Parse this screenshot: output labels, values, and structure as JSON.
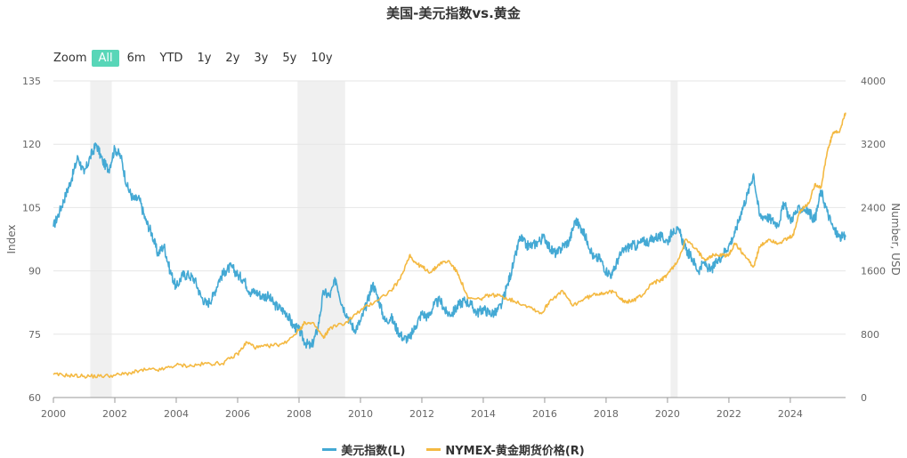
{
  "chart_data": {
    "type": "line",
    "title": "美国-美元指数vs.黄金",
    "y_left": {
      "label": "Index",
      "ticks": [
        60,
        75,
        90,
        105,
        120,
        135
      ],
      "range": [
        60,
        135
      ]
    },
    "y_right": {
      "label": "Number, USD",
      "ticks": [
        0,
        800,
        1600,
        2400,
        3200,
        4000
      ],
      "range": [
        0,
        4000
      ]
    },
    "x_range": [
      2000,
      2025.8
    ],
    "x_ticks": [
      "2000",
      "2002",
      "2004",
      "2006",
      "2008",
      "2010",
      "2012",
      "2014",
      "2016",
      "2018",
      "2020",
      "2022",
      "2024"
    ],
    "recessions": [
      [
        2001.2,
        2001.9
      ],
      [
        2007.95,
        2009.5
      ],
      [
        2020.1,
        2020.33
      ]
    ],
    "series": [
      {
        "name": "美元指数(L)",
        "axis": "left",
        "color": "#44a9d4",
        "points": [
          [
            2000.0,
            100.5
          ],
          [
            2000.2,
            104
          ],
          [
            2000.4,
            108
          ],
          [
            2000.6,
            112
          ],
          [
            2000.8,
            117
          ],
          [
            2001.0,
            113
          ],
          [
            2001.2,
            117
          ],
          [
            2001.4,
            120
          ],
          [
            2001.6,
            116
          ],
          [
            2001.8,
            114
          ],
          [
            2002.0,
            119
          ],
          [
            2002.2,
            117
          ],
          [
            2002.4,
            110
          ],
          [
            2002.6,
            107
          ],
          [
            2002.8,
            107
          ],
          [
            2003.0,
            102
          ],
          [
            2003.2,
            99
          ],
          [
            2003.4,
            94
          ],
          [
            2003.6,
            96
          ],
          [
            2003.8,
            90
          ],
          [
            2004.0,
            86
          ],
          [
            2004.2,
            89
          ],
          [
            2004.4,
            89
          ],
          [
            2004.6,
            88
          ],
          [
            2004.8,
            84
          ],
          [
            2005.0,
            82
          ],
          [
            2005.2,
            84
          ],
          [
            2005.4,
            88
          ],
          [
            2005.6,
            90
          ],
          [
            2005.8,
            91
          ],
          [
            2006.0,
            89
          ],
          [
            2006.2,
            88
          ],
          [
            2006.4,
            85
          ],
          [
            2006.6,
            85
          ],
          [
            2006.8,
            84
          ],
          [
            2007.0,
            84
          ],
          [
            2007.2,
            82
          ],
          [
            2007.4,
            81
          ],
          [
            2007.6,
            80
          ],
          [
            2007.8,
            77
          ],
          [
            2008.0,
            76
          ],
          [
            2008.2,
            73
          ],
          [
            2008.4,
            72
          ],
          [
            2008.6,
            76
          ],
          [
            2008.8,
            85
          ],
          [
            2009.0,
            84
          ],
          [
            2009.2,
            88
          ],
          [
            2009.4,
            82
          ],
          [
            2009.6,
            79
          ],
          [
            2009.8,
            76
          ],
          [
            2010.0,
            78
          ],
          [
            2010.2,
            82
          ],
          [
            2010.4,
            87
          ],
          [
            2010.6,
            83
          ],
          [
            2010.8,
            78
          ],
          [
            2011.0,
            79
          ],
          [
            2011.2,
            76
          ],
          [
            2011.4,
            74
          ],
          [
            2011.6,
            74
          ],
          [
            2011.8,
            77
          ],
          [
            2012.0,
            80
          ],
          [
            2012.2,
            79
          ],
          [
            2012.4,
            82
          ],
          [
            2012.6,
            83
          ],
          [
            2012.8,
            80
          ],
          [
            2013.0,
            80
          ],
          [
            2013.2,
            82
          ],
          [
            2013.4,
            83
          ],
          [
            2013.6,
            82
          ],
          [
            2013.8,
            80
          ],
          [
            2014.0,
            81
          ],
          [
            2014.2,
            80
          ],
          [
            2014.4,
            80
          ],
          [
            2014.6,
            82
          ],
          [
            2014.8,
            87
          ],
          [
            2015.0,
            92
          ],
          [
            2015.2,
            98
          ],
          [
            2015.4,
            96
          ],
          [
            2015.6,
            96
          ],
          [
            2015.8,
            97
          ],
          [
            2016.0,
            98
          ],
          [
            2016.2,
            95
          ],
          [
            2016.4,
            94
          ],
          [
            2016.6,
            96
          ],
          [
            2016.8,
            97
          ],
          [
            2017.0,
            102
          ],
          [
            2017.2,
            100
          ],
          [
            2017.4,
            97
          ],
          [
            2017.6,
            93
          ],
          [
            2017.8,
            93
          ],
          [
            2018.0,
            90
          ],
          [
            2018.2,
            89
          ],
          [
            2018.4,
            93
          ],
          [
            2018.6,
            95
          ],
          [
            2018.8,
            96
          ],
          [
            2019.0,
            96
          ],
          [
            2019.2,
            97
          ],
          [
            2019.4,
            97
          ],
          [
            2019.6,
            98
          ],
          [
            2019.8,
            98
          ],
          [
            2020.0,
            97
          ],
          [
            2020.2,
            100
          ],
          [
            2020.4,
            99
          ],
          [
            2020.6,
            95
          ],
          [
            2020.8,
            93
          ],
          [
            2021.0,
            90
          ],
          [
            2021.2,
            92
          ],
          [
            2021.4,
            90
          ],
          [
            2021.6,
            92
          ],
          [
            2021.8,
            94
          ],
          [
            2022.0,
            96
          ],
          [
            2022.2,
            99
          ],
          [
            2022.4,
            104
          ],
          [
            2022.6,
            108
          ],
          [
            2022.8,
            113
          ],
          [
            2023.0,
            103
          ],
          [
            2023.2,
            103
          ],
          [
            2023.4,
            102
          ],
          [
            2023.6,
            101
          ],
          [
            2023.8,
            106
          ],
          [
            2024.0,
            102
          ],
          [
            2024.2,
            104
          ],
          [
            2024.4,
            105
          ],
          [
            2024.6,
            104
          ],
          [
            2024.8,
            102
          ],
          [
            2025.0,
            109
          ],
          [
            2025.2,
            104
          ],
          [
            2025.4,
            100
          ],
          [
            2025.6,
            98
          ],
          [
            2025.8,
            98
          ]
        ]
      },
      {
        "name": "NYMEX-黄金期货价格(R)",
        "axis": "right",
        "color": "#f4b942",
        "points": [
          [
            2000.0,
            290
          ],
          [
            2000.5,
            280
          ],
          [
            2001.0,
            270
          ],
          [
            2001.5,
            270
          ],
          [
            2002.0,
            280
          ],
          [
            2002.5,
            310
          ],
          [
            2003.0,
            350
          ],
          [
            2003.5,
            350
          ],
          [
            2004.0,
            410
          ],
          [
            2004.5,
            400
          ],
          [
            2005.0,
            430
          ],
          [
            2005.5,
            430
          ],
          [
            2006.0,
            550
          ],
          [
            2006.3,
            700
          ],
          [
            2006.6,
            630
          ],
          [
            2007.0,
            650
          ],
          [
            2007.5,
            680
          ],
          [
            2008.0,
            850
          ],
          [
            2008.2,
            950
          ],
          [
            2008.5,
            920
          ],
          [
            2008.8,
            750
          ],
          [
            2009.0,
            880
          ],
          [
            2009.5,
            940
          ],
          [
            2010.0,
            1100
          ],
          [
            2010.5,
            1220
          ],
          [
            2011.0,
            1350
          ],
          [
            2011.3,
            1500
          ],
          [
            2011.6,
            1800
          ],
          [
            2011.8,
            1700
          ],
          [
            2012.0,
            1650
          ],
          [
            2012.3,
            1580
          ],
          [
            2012.6,
            1700
          ],
          [
            2012.9,
            1720
          ],
          [
            2013.2,
            1550
          ],
          [
            2013.5,
            1250
          ],
          [
            2013.9,
            1240
          ],
          [
            2014.2,
            1300
          ],
          [
            2014.6,
            1280
          ],
          [
            2015.0,
            1220
          ],
          [
            2015.5,
            1150
          ],
          [
            2015.9,
            1060
          ],
          [
            2016.2,
            1240
          ],
          [
            2016.6,
            1340
          ],
          [
            2016.9,
            1160
          ],
          [
            2017.3,
            1250
          ],
          [
            2017.7,
            1310
          ],
          [
            2018.0,
            1330
          ],
          [
            2018.3,
            1330
          ],
          [
            2018.6,
            1200
          ],
          [
            2018.9,
            1230
          ],
          [
            2019.2,
            1300
          ],
          [
            2019.5,
            1450
          ],
          [
            2019.8,
            1480
          ],
          [
            2020.0,
            1560
          ],
          [
            2020.3,
            1700
          ],
          [
            2020.6,
            2000
          ],
          [
            2020.9,
            1880
          ],
          [
            2021.2,
            1750
          ],
          [
            2021.5,
            1800
          ],
          [
            2021.8,
            1800
          ],
          [
            2022.0,
            1800
          ],
          [
            2022.2,
            1950
          ],
          [
            2022.5,
            1800
          ],
          [
            2022.8,
            1650
          ],
          [
            2023.0,
            1900
          ],
          [
            2023.3,
            2000
          ],
          [
            2023.6,
            1950
          ],
          [
            2023.9,
            2000
          ],
          [
            2024.1,
            2050
          ],
          [
            2024.3,
            2350
          ],
          [
            2024.6,
            2450
          ],
          [
            2024.8,
            2700
          ],
          [
            2025.0,
            2650
          ],
          [
            2025.2,
            3100
          ],
          [
            2025.4,
            3350
          ],
          [
            2025.6,
            3350
          ],
          [
            2025.8,
            3600
          ]
        ]
      }
    ],
    "grid": true,
    "legend_position": "bottom"
  },
  "zoom": {
    "label": "Zoom",
    "buttons": [
      "All",
      "6m",
      "YTD",
      "1y",
      "2y",
      "3y",
      "5y",
      "10y"
    ],
    "selected": "All"
  }
}
